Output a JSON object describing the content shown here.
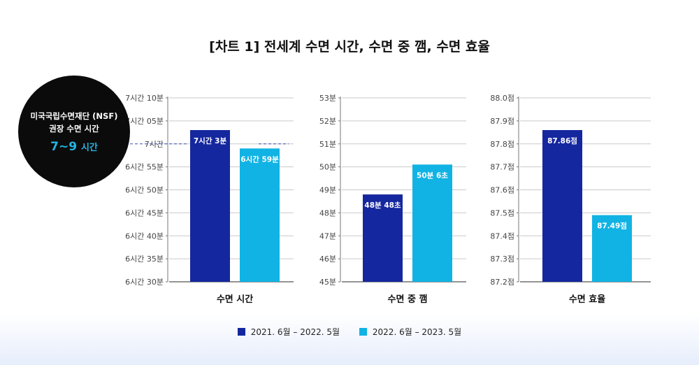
{
  "title": "[차트 1] 전세계 수면 시간, 수면 중 깸, 수면 효율",
  "badge": {
    "line1": "미국국립수면재단 (NSF)",
    "line2": "권장 수면 시간",
    "value": "7~9",
    "unit": "시간"
  },
  "colors": {
    "series1": "#15279e",
    "series2": "#11b3e4",
    "grid": "#c9c9c9",
    "badge_accent": "#22b6e4"
  },
  "legend": [
    "2021. 6월 – 2022. 5월",
    "2022. 6월 – 2023. 5월"
  ],
  "chart_data": [
    {
      "type": "bar",
      "xlabel": "수면 시간",
      "unit": "minutes",
      "ylim": [
        390,
        430
      ],
      "yticks": [
        390,
        395,
        400,
        405,
        410,
        415,
        420,
        425,
        430
      ],
      "ytick_labels": [
        "6시간 30분",
        "6시간 35분",
        "6시간 40분",
        "6시간 45분",
        "6시간 50분",
        "6시간 55분",
        "7시간",
        "7시간 05분",
        "7시간 10분"
      ],
      "reference_line": 420,
      "series": [
        {
          "name": "2021. 6월 – 2022. 5월",
          "value": 423,
          "label": "7시간 3분"
        },
        {
          "name": "2022. 6월 – 2023. 5월",
          "value": 419,
          "label": "6시간 59분"
        }
      ]
    },
    {
      "type": "bar",
      "xlabel": "수면 중 깸",
      "unit": "minutes",
      "ylim": [
        45,
        53
      ],
      "yticks": [
        45,
        46,
        47,
        48,
        49,
        50,
        51,
        52,
        53
      ],
      "ytick_labels": [
        "45분",
        "46분",
        "47분",
        "48분",
        "49분",
        "50분",
        "51분",
        "52분",
        "53분"
      ],
      "series": [
        {
          "name": "2021. 6월 – 2022. 5월",
          "value": 48.8,
          "label": "48분 48초"
        },
        {
          "name": "2022. 6월 – 2023. 5월",
          "value": 50.1,
          "label": "50분 6초"
        }
      ]
    },
    {
      "type": "bar",
      "xlabel": "수면 효율",
      "unit": "점",
      "ylim": [
        87.2,
        88.0
      ],
      "yticks": [
        87.2,
        87.3,
        87.4,
        87.5,
        87.6,
        87.7,
        87.8,
        87.9,
        88.0
      ],
      "ytick_labels": [
        "87.2점",
        "87.3점",
        "87.4점",
        "87.5점",
        "87.6점",
        "87.7점",
        "87.8점",
        "87.9점",
        "88.0점"
      ],
      "series": [
        {
          "name": "2021. 6월 – 2022. 5월",
          "value": 87.86,
          "label": "87.86점"
        },
        {
          "name": "2022. 6월 – 2023. 5월",
          "value": 87.49,
          "label": "87.49점"
        }
      ]
    }
  ]
}
